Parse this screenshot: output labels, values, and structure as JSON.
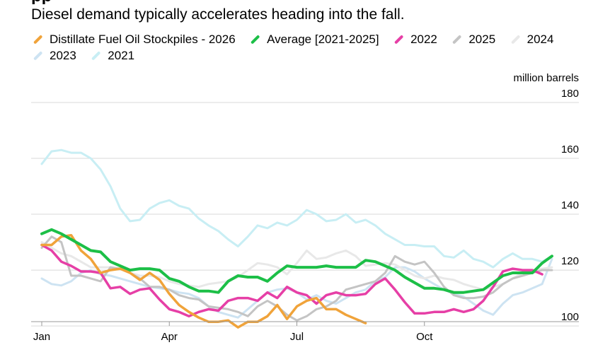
{
  "chart_data": {
    "type": "line",
    "title": "Diesel demand typically accelerates heading into the fall.",
    "cut_headline_fragment": "pp",
    "ylabel": "million barrels",
    "ylim": [
      98,
      180
    ],
    "yticks": [
      100,
      120,
      140,
      160,
      180
    ],
    "xlim": [
      1,
      53
    ],
    "x_ticks": [
      {
        "label": "Jan",
        "week": 1
      },
      {
        "label": "Apr",
        "week": 14
      },
      {
        "label": "Jul",
        "week": 27
      },
      {
        "label": "Oct",
        "week": 40
      }
    ],
    "grid": true,
    "legend_position": "top-left",
    "series": [
      {
        "name": "2021",
        "color": "#c8eef4",
        "width": 3,
        "x": [
          1,
          2,
          3,
          4,
          5,
          6,
          7,
          8,
          9,
          10,
          11,
          12,
          13,
          14,
          15,
          16,
          17,
          18,
          19,
          20,
          21,
          22,
          23,
          24,
          25,
          26,
          27,
          28,
          29,
          30,
          31,
          32,
          33,
          34,
          35,
          36,
          37,
          38,
          39,
          40,
          41,
          42,
          43,
          44,
          45,
          46,
          47,
          48,
          49,
          50,
          51,
          52,
          53
        ],
        "y": [
          158,
          162.5,
          163,
          162,
          162,
          160,
          156,
          150,
          142,
          137.5,
          138,
          142,
          144,
          145,
          143,
          142,
          138.5,
          136,
          134,
          131,
          128.5,
          132,
          136,
          135,
          137,
          136,
          138,
          141.5,
          140,
          137.5,
          138,
          140,
          137,
          138,
          136,
          133,
          131,
          129,
          129,
          128.5,
          128.5,
          125,
          124.5,
          127,
          124,
          123,
          121,
          124,
          126,
          124,
          124,
          123,
          125
        ]
      },
      {
        "name": "2023",
        "color": "#cde3f2",
        "width": 3,
        "x": [
          1,
          2,
          3,
          4,
          5,
          6,
          7,
          8,
          9,
          10,
          11,
          12,
          13,
          14,
          15,
          16,
          17,
          18,
          19,
          20,
          21,
          22,
          23,
          24,
          25,
          26,
          27,
          28,
          29,
          30,
          31,
          32,
          33,
          34,
          35,
          36,
          37,
          38,
          39,
          40,
          41,
          42,
          43,
          44,
          45,
          46,
          47,
          48,
          49,
          50,
          51,
          52,
          53
        ],
        "y": [
          117,
          115,
          114.5,
          116,
          119,
          120,
          118.5,
          118,
          117,
          116,
          115,
          114,
          113.5,
          113,
          112,
          111.5,
          110,
          107,
          105,
          104,
          103,
          106,
          109,
          112,
          113,
          113.5,
          112,
          109.5,
          111,
          109,
          108,
          110,
          112,
          113,
          116,
          117.5,
          121,
          121,
          119.5,
          117,
          115,
          113,
          111.5,
          110.5,
          108,
          105.5,
          104,
          108,
          111,
          112,
          113.5,
          115,
          124
        ]
      },
      {
        "name": "2024",
        "color": "#e8e8e8",
        "width": 3,
        "x": [
          1,
          2,
          3,
          4,
          5,
          6,
          7,
          8,
          9,
          10,
          11,
          12,
          13,
          14,
          15,
          16,
          17,
          18,
          19,
          20,
          21,
          22,
          23,
          24,
          25,
          26,
          27,
          28,
          29,
          30,
          31,
          32,
          33,
          34,
          35,
          36,
          37,
          38,
          39,
          40,
          41,
          42,
          43,
          44,
          45,
          46,
          47,
          48,
          49,
          50,
          51,
          52,
          53
        ],
        "y": [
          130,
          128,
          126,
          125,
          123,
          121,
          121,
          121,
          120.5,
          119,
          118,
          118,
          117.5,
          116,
          115,
          114.5,
          114,
          115,
          115.5,
          116,
          117.5,
          120,
          122.5,
          122,
          121,
          118.5,
          122.5,
          127,
          124,
          124.5,
          126,
          127,
          125,
          121.5,
          122,
          122.5,
          122,
          120,
          118,
          117,
          118,
          117,
          116.5,
          115,
          114,
          113,
          114,
          115,
          117,
          119,
          120,
          120.5,
          121
        ]
      },
      {
        "name": "2025",
        "color": "#c4c4c4",
        "width": 3,
        "x": [
          1,
          2,
          3,
          4,
          5,
          6,
          7,
          8,
          9,
          10,
          11,
          12,
          13,
          14,
          15,
          16,
          17,
          18,
          19,
          20,
          21,
          22,
          23,
          24,
          25,
          26,
          27,
          28,
          29,
          30,
          31,
          32,
          33,
          34,
          35,
          36,
          37,
          38,
          39,
          40,
          41,
          42,
          43,
          44,
          45,
          46,
          47,
          48,
          49,
          50,
          51,
          52,
          53
        ],
        "y": [
          128,
          132,
          130,
          118,
          118,
          117,
          116,
          121,
          120.5,
          119,
          117,
          114,
          114,
          113,
          111,
          110,
          109.5,
          107,
          106.5,
          106,
          105,
          103.5,
          107,
          109,
          107,
          104,
          102,
          103.5,
          106,
          107,
          109,
          113,
          114,
          115,
          116,
          119,
          125,
          123,
          122,
          123,
          119,
          114,
          111,
          110,
          110,
          110.5,
          112,
          115,
          117,
          118,
          119,
          120,
          120
        ]
      },
      {
        "name": "2022",
        "color": "#e63fa6",
        "width": 3.5,
        "x": [
          1,
          2,
          3,
          4,
          5,
          6,
          7,
          8,
          9,
          10,
          11,
          12,
          13,
          14,
          15,
          16,
          17,
          18,
          19,
          20,
          21,
          22,
          23,
          24,
          25,
          26,
          27,
          28,
          29,
          30,
          31,
          32,
          33,
          34,
          35,
          36,
          37,
          38,
          39,
          40,
          41,
          42,
          43,
          44,
          45,
          46,
          47,
          48,
          49,
          50,
          51,
          52
        ],
        "y": [
          129,
          127,
          123,
          121.5,
          119.5,
          119.5,
          119,
          113.5,
          114,
          111.5,
          113,
          113.5,
          109.5,
          106,
          105,
          103.5,
          105,
          106,
          105.5,
          109,
          110,
          110,
          109,
          112,
          110,
          114,
          112,
          111,
          108,
          111,
          112,
          111,
          111,
          111.5,
          115,
          117,
          113,
          108.5,
          104.5,
          104.5,
          105,
          105,
          106,
          105,
          106,
          109,
          114,
          119.5,
          120.5,
          120,
          120,
          118.5
        ]
      },
      {
        "name": "Distillate Fuel Oil Stockpiles - 2026",
        "color": "#f0a33a",
        "width": 3.5,
        "x": [
          1,
          2,
          3,
          4,
          5,
          6,
          7,
          8,
          9,
          10,
          11,
          12,
          13,
          14,
          15,
          16,
          17,
          18,
          19,
          20,
          21,
          22,
          23,
          24,
          25,
          26,
          27,
          28,
          29,
          30,
          31,
          32,
          33,
          34
        ],
        "y": [
          129,
          129,
          132,
          132.5,
          127,
          124,
          119,
          120,
          120.5,
          119,
          116.5,
          119,
          116.5,
          111.5,
          107.5,
          105,
          103,
          101.5,
          101.5,
          102,
          99.5,
          101.5,
          101.5,
          103.5,
          107.5,
          102.5,
          107,
          109,
          110,
          106,
          106,
          104,
          102.5,
          101
        ]
      },
      {
        "name": "Average [2021-2025]",
        "color": "#1cbf47",
        "width": 4,
        "x": [
          1,
          2,
          3,
          4,
          5,
          6,
          7,
          8,
          9,
          10,
          11,
          12,
          13,
          14,
          15,
          16,
          17,
          18,
          19,
          20,
          21,
          22,
          23,
          24,
          25,
          26,
          27,
          28,
          29,
          30,
          31,
          32,
          33,
          34,
          35,
          36,
          37,
          38,
          39,
          40,
          41,
          42,
          43,
          44,
          45,
          46,
          47,
          48,
          49,
          50,
          51,
          52,
          53
        ],
        "y": [
          133,
          134.5,
          133,
          131,
          129,
          127,
          126.5,
          123,
          121.5,
          120,
          120.5,
          120.5,
          120,
          117,
          116,
          114,
          112.5,
          112.5,
          112,
          116,
          118,
          117.5,
          117.5,
          116,
          119,
          121.5,
          121,
          121,
          121,
          121.5,
          121,
          121,
          121,
          123.5,
          123,
          121.5,
          120,
          117.5,
          115.5,
          113.5,
          113.5,
          113,
          112,
          112,
          112.5,
          113,
          115.5,
          118,
          119,
          119,
          119,
          122.5,
          125
        ]
      }
    ],
    "legend": [
      {
        "name": "Distillate Fuel Oil Stockpiles - 2026",
        "color": "#f0a33a"
      },
      {
        "name": "Average [2021-2025]",
        "color": "#1cbf47"
      },
      {
        "name": "2022",
        "color": "#e63fa6"
      },
      {
        "name": "2025",
        "color": "#c4c4c4"
      },
      {
        "name": "2024",
        "color": "#e8e8e8"
      },
      {
        "name": "2023",
        "color": "#cde3f2"
      },
      {
        "name": "2021",
        "color": "#c8eef4"
      }
    ]
  }
}
